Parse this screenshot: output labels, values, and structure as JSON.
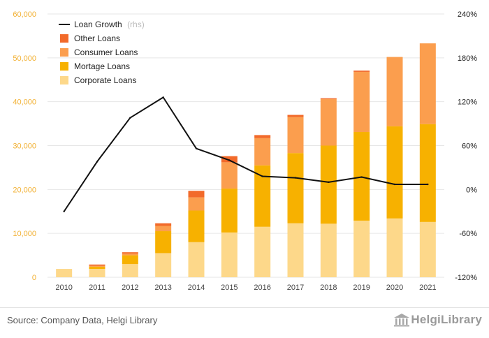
{
  "chart_data": {
    "type": "bar",
    "stacked": true,
    "categories": [
      "2010",
      "2011",
      "2012",
      "2013",
      "2014",
      "2015",
      "2016",
      "2017",
      "2018",
      "2019",
      "2020",
      "2021"
    ],
    "series": [
      {
        "name": "Corporate Loans",
        "color": "#fdd88a",
        "values": [
          1900,
          1900,
          3000,
          5500,
          8000,
          10200,
          11500,
          12300,
          12200,
          12900,
          13400,
          12600
        ]
      },
      {
        "name": "Mortage Loans",
        "color": "#f7b100",
        "values": [
          0,
          500,
          2000,
          5000,
          7200,
          10000,
          14000,
          16000,
          17800,
          20200,
          21000,
          22300
        ]
      },
      {
        "name": "Consumer Loans",
        "color": "#fb9e4e",
        "values": [
          0,
          200,
          400,
          1200,
          3000,
          6000,
          6200,
          8200,
          10600,
          13700,
          15800,
          18400
        ]
      },
      {
        "name": "Other Loans",
        "color": "#f26a2a",
        "values": [
          0,
          300,
          300,
          600,
          1500,
          1400,
          700,
          500,
          200,
          300,
          0,
          0
        ]
      }
    ],
    "line": {
      "name": "Loan Growth",
      "note": "(rhs)",
      "color": "#111111",
      "values": [
        -30,
        38,
        98,
        126,
        56,
        40,
        18,
        16,
        10,
        17,
        7,
        7
      ]
    },
    "y_left": {
      "min": 0,
      "max": 60000,
      "ticks": [
        "0",
        "10,000",
        "20,000",
        "30,000",
        "40,000",
        "50,000",
        "60,000"
      ],
      "tick_values": [
        0,
        10000,
        20000,
        30000,
        40000,
        50000,
        60000
      ]
    },
    "y_right": {
      "min": -120,
      "max": 240,
      "ticks": [
        "-120%",
        "-60%",
        "0%",
        "60%",
        "120%",
        "180%",
        "240%"
      ],
      "tick_values": [
        -120,
        -60,
        0,
        60,
        120,
        180,
        240
      ]
    },
    "legend_position": "top-left",
    "grid": true
  },
  "footer": {
    "source": "Source: Company Data, Helgi Library",
    "brand": "HelgiLibrary"
  },
  "colors": {
    "left_axis": "#f2b134",
    "grid": "#e6e6e6"
  }
}
